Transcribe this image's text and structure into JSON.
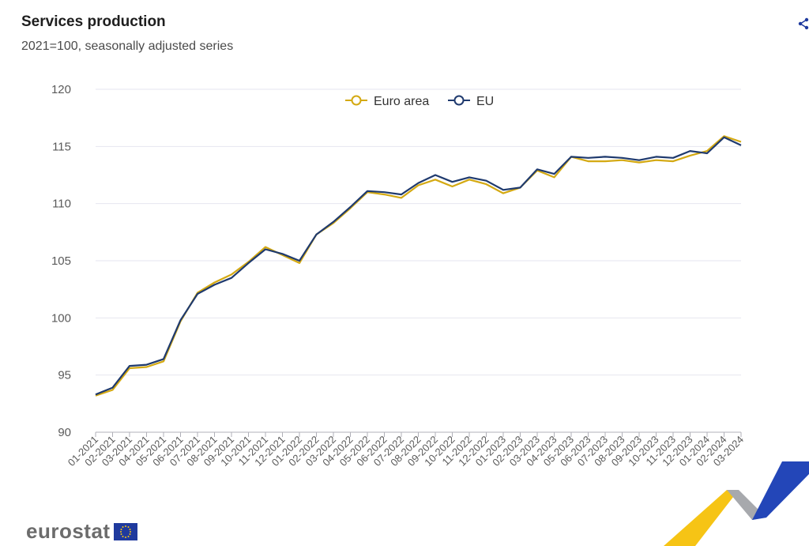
{
  "header": {
    "title": "Services production",
    "subtitle": "2021=100, seasonally adjusted series"
  },
  "brand": {
    "logo_text": "eurostat"
  },
  "icons": {
    "share": "share-icon",
    "flag": "eu-flag-icon"
  },
  "colors": {
    "euro_area": "#d4a912",
    "eu": "#1f3a6e",
    "grid": "#e6e6ef",
    "axis_text": "#5a5a5a"
  },
  "chart_data": {
    "type": "line",
    "title": "Services production",
    "subtitle": "2021=100, seasonally adjusted series",
    "xlabel": "",
    "ylabel": "",
    "ylim": [
      90,
      120
    ],
    "yticks": [
      90,
      95,
      100,
      105,
      110,
      115,
      120
    ],
    "grid": true,
    "legend_position": "top-center",
    "x": [
      "01-2021",
      "02-2021",
      "03-2021",
      "04-2021",
      "05-2021",
      "06-2021",
      "07-2021",
      "08-2021",
      "09-2021",
      "10-2021",
      "11-2021",
      "12-2021",
      "01-2022",
      "02-2022",
      "03-2022",
      "04-2022",
      "05-2022",
      "06-2022",
      "07-2022",
      "08-2022",
      "09-2022",
      "10-2022",
      "11-2022",
      "12-2022",
      "01-2023",
      "02-2023",
      "03-2023",
      "04-2023",
      "05-2023",
      "06-2023",
      "07-2023",
      "08-2023",
      "09-2023",
      "10-2023",
      "11-2023",
      "12-2023",
      "01-2024",
      "02-2024",
      "03-2024"
    ],
    "series": [
      {
        "name": "Euro area",
        "color": "#d4a912",
        "values": [
          93.2,
          93.7,
          95.6,
          95.7,
          96.2,
          99.7,
          102.2,
          103.1,
          103.8,
          104.9,
          106.2,
          105.5,
          104.8,
          107.3,
          108.3,
          109.6,
          111.0,
          110.8,
          110.5,
          111.6,
          112.1,
          111.5,
          112.1,
          111.7,
          110.9,
          111.4,
          112.9,
          112.3,
          114.1,
          113.7,
          113.7,
          113.8,
          113.6,
          113.8,
          113.7,
          114.2,
          114.6,
          115.9,
          115.4
        ]
      },
      {
        "name": "EU",
        "color": "#1f3a6e",
        "values": [
          93.3,
          93.9,
          95.8,
          95.9,
          96.4,
          99.8,
          102.1,
          102.9,
          103.5,
          104.8,
          106.0,
          105.6,
          105.0,
          107.3,
          108.4,
          109.7,
          111.1,
          111.0,
          110.8,
          111.8,
          112.5,
          111.9,
          112.3,
          112.0,
          111.2,
          111.4,
          113.0,
          112.6,
          114.1,
          114.0,
          114.1,
          114.0,
          113.8,
          114.1,
          114.0,
          114.6,
          114.4,
          115.8,
          115.1
        ]
      }
    ]
  }
}
